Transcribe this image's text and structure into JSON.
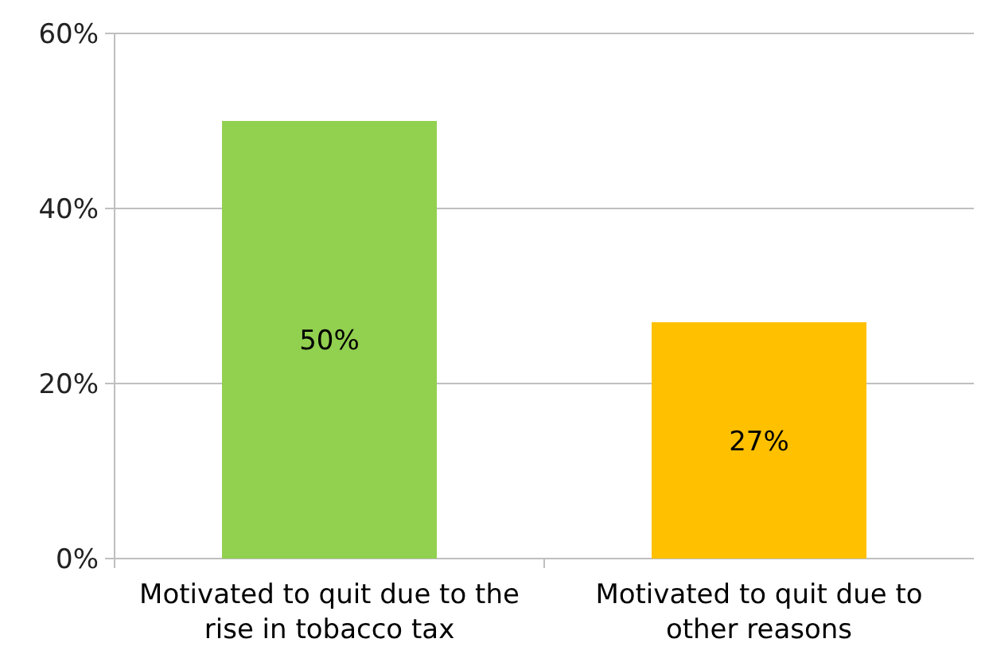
{
  "chart_data": {
    "type": "bar",
    "categories": [
      "Motivated to quit due to the rise in tobacco tax",
      "Motivated to quit due to other reasons"
    ],
    "values": [
      50,
      27
    ],
    "colors": [
      "#92d050",
      "#ffc000"
    ],
    "value_labels": [
      "50%",
      "27%"
    ],
    "ylim": [
      0,
      60
    ],
    "yticks": [
      {
        "value": 0,
        "label": "0%"
      },
      {
        "value": 20,
        "label": "20%"
      },
      {
        "value": 40,
        "label": "40%"
      },
      {
        "value": 60,
        "label": "60%"
      }
    ],
    "grid": "y"
  }
}
